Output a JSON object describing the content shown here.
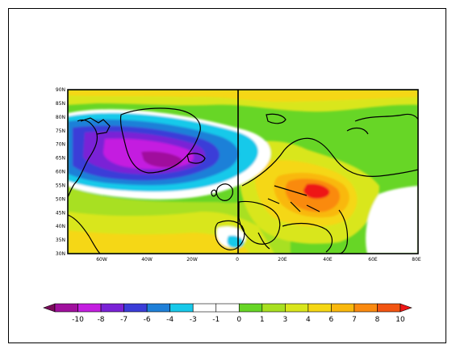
{
  "map": {
    "lat_labels": [
      "90N",
      "85N",
      "80N",
      "75N",
      "70N",
      "65N",
      "60N",
      "55N",
      "50N",
      "45N",
      "40N",
      "35N",
      "30N"
    ],
    "lon_labels": [
      "60W",
      "40W",
      "20W",
      "0",
      "20E",
      "40E",
      "60E",
      "80E"
    ],
    "extent": {
      "lon_min": -75,
      "lon_max": 80,
      "lat_min": 30,
      "lat_max": 90
    },
    "colors": {
      "lvl_neg10": "#7a0b5b",
      "lvl_neg8": "#a0109d",
      "lvl_neg7": "#c41fe0",
      "lvl_neg6": "#7a22d6",
      "lvl_neg4": "#3b3dd8",
      "lvl_neg3": "#1f80d8",
      "lvl_neg1": "#18c9ea",
      "lvl_zero": "#ffffff",
      "lvl_1": "#67d626",
      "lvl_3": "#a8e021",
      "lvl_4": "#d9e61c",
      "lvl_6": "#f5d714",
      "lvl_7": "#f9b80d",
      "lvl_8": "#fa8a10",
      "lvl_10": "#f25512",
      "lvl_max": "#ee1616"
    }
  },
  "colorbar": {
    "labels": [
      "-10",
      "-8",
      "-7",
      "-6",
      "-4",
      "-3",
      "-1",
      "0",
      "1",
      "3",
      "4",
      "6",
      "7",
      "8",
      "10"
    ],
    "colors": [
      "#7a0b5b",
      "#a0109d",
      "#c41fe0",
      "#7a22d6",
      "#3b3dd8",
      "#1f80d8",
      "#18c9ea",
      "#ffffff",
      "#ffffff",
      "#67d626",
      "#a8e021",
      "#d9e61c",
      "#f5d714",
      "#f9b80d",
      "#fa8a10",
      "#f25512",
      "#ee1616"
    ]
  }
}
